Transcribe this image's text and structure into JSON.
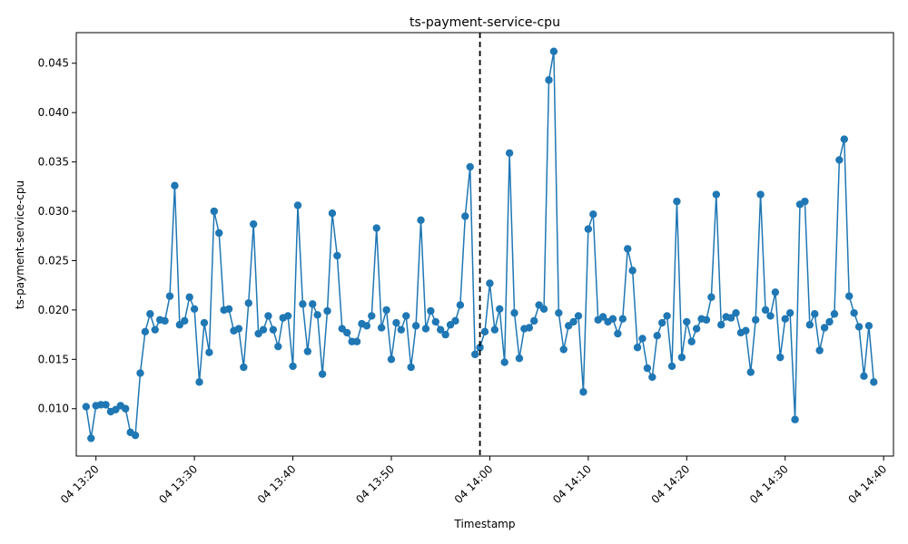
{
  "chart_data": {
    "type": "line",
    "title": "ts-payment-service-cpu",
    "xlabel": "Timestamp",
    "ylabel": "ts-payment-service-cpu",
    "x_start": "04 13:19",
    "x_interval_seconds": 30,
    "x_ticks": [
      "04 13:20",
      "04 13:30",
      "04 13:40",
      "04 13:50",
      "04 14:00",
      "04 14:10",
      "04 14:20",
      "04 14:30",
      "04 14:40"
    ],
    "y_ticks": [
      "0.010",
      "0.015",
      "0.020",
      "0.025",
      "0.030",
      "0.035",
      "0.040",
      "0.045"
    ],
    "ylim": [
      0.0052,
      0.0481
    ],
    "xlim": [
      "04 13:18",
      "04 14:41"
    ],
    "grid": false,
    "marker": "circle",
    "line_color": "#1f77b4",
    "marker_color": "#1f77b4",
    "vertical_marker": {
      "x": "04 13:59",
      "style": "dashed",
      "color": "#000000"
    },
    "series": [
      {
        "values": [
          0.0102,
          0.007,
          0.0103,
          0.0104,
          0.0104,
          0.0097,
          0.0099,
          0.0103,
          0.01,
          0.0076,
          0.0073,
          0.0136,
          0.0178,
          0.0196,
          0.018,
          0.019,
          0.0189,
          0.0214,
          0.0326,
          0.0185,
          0.0189,
          0.0213,
          0.0201,
          0.0127,
          0.0187,
          0.0157,
          0.03,
          0.0278,
          0.02,
          0.0201,
          0.0179,
          0.0181,
          0.0142,
          0.0207,
          0.0287,
          0.0176,
          0.018,
          0.0194,
          0.018,
          0.0163,
          0.0192,
          0.0194,
          0.0143,
          0.0306,
          0.0206,
          0.0158,
          0.0206,
          0.0195,
          0.0135,
          0.0199,
          0.0298,
          0.0255,
          0.0181,
          0.0177,
          0.0168,
          0.0168,
          0.0186,
          0.0184,
          0.0194,
          0.0283,
          0.0182,
          0.02,
          0.015,
          0.0187,
          0.018,
          0.0194,
          0.0142,
          0.0184,
          0.0291,
          0.0181,
          0.0199,
          0.0188,
          0.018,
          0.0175,
          0.0185,
          0.0189,
          0.0205,
          0.0295,
          0.0345,
          0.0155,
          0.0162,
          0.0178,
          0.0227,
          0.018,
          0.0201,
          0.0147,
          0.0359,
          0.0197,
          0.0151,
          0.0181,
          0.0182,
          0.0189,
          0.0205,
          0.0201,
          0.0433,
          0.0462,
          0.0197,
          0.016,
          0.0184,
          0.0188,
          0.0194,
          0.0117,
          0.0282,
          0.0297,
          0.019,
          0.0193,
          0.0188,
          0.0191,
          0.0176,
          0.0191,
          0.0262,
          0.024,
          0.0162,
          0.0171,
          0.0141,
          0.0132,
          0.0174,
          0.0187,
          0.0194,
          0.0143,
          0.031,
          0.0152,
          0.0188,
          0.0168,
          0.0181,
          0.0191,
          0.019,
          0.0213,
          0.0317,
          0.0185,
          0.0193,
          0.0192,
          0.0197,
          0.0177,
          0.0179,
          0.0137,
          0.019,
          0.0317,
          0.02,
          0.0194,
          0.0218,
          0.0152,
          0.0191,
          0.0197,
          0.0089,
          0.0307,
          0.031,
          0.0185,
          0.0196,
          0.0159,
          0.0182,
          0.0188,
          0.0196,
          0.0352,
          0.0373,
          0.0214,
          0.0197,
          0.0183,
          0.0133,
          0.0184,
          0.0127
        ]
      }
    ]
  }
}
